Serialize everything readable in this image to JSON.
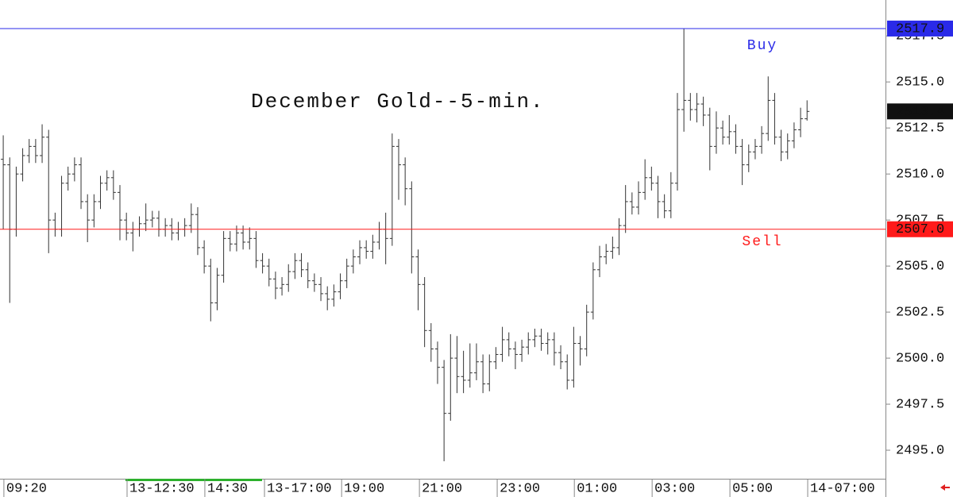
{
  "chart_data": {
    "type": "ohlc",
    "title": "December Gold--5-min.",
    "xlim": [
      -0.5,
      136.1
    ],
    "ylim": [
      2493.45,
      2519.45
    ],
    "yticks": [
      {
        "value": 2495,
        "label": "2495.0"
      },
      2497.5,
      {
        "value": 2500,
        "label": "2500.0"
      },
      2502.5,
      {
        "value": 2505,
        "label": "2505.0"
      },
      2507.5,
      {
        "value": 2510,
        "label": "2510.0"
      },
      2512.5,
      {
        "value": 2515,
        "label": "2515.0"
      },
      2517.5
    ],
    "xticks": [
      {
        "value": 0.1,
        "label": "09:20"
      },
      {
        "value": 19.1,
        "label": "13-12:30"
      },
      {
        "value": 31.1,
        "label": "14:30"
      },
      {
        "value": 40.3,
        "label": "13-17:00"
      },
      {
        "value": 52.2,
        "label": "19:00"
      },
      {
        "value": 64.2,
        "label": "21:00"
      },
      {
        "value": 76.2,
        "label": "23:00"
      },
      {
        "value": 88.1,
        "label": "01:00"
      },
      {
        "value": 100.1,
        "label": "03:00"
      },
      {
        "value": 112.1,
        "label": "05:00"
      },
      {
        "value": 124.1,
        "label": "14-07:00"
      }
    ],
    "color": "#333333",
    "buy": {
      "text": "Buy",
      "price": 2517.9,
      "color": "#2a2ae8"
    },
    "sell": {
      "text": "Sell",
      "price": {
        "value": 2507,
        "label": "2507.0"
      },
      "color": "#ff1a1a"
    },
    "last_price": 2513.4,
    "open": [
      2510.8,
      2510.5,
      2507,
      2510,
      2511,
      2511.5,
      2511,
      2512,
      2507.5,
      2507,
      2509.5,
      2510,
      2510.5,
      2508.5,
      2507.5,
      2508.5,
      2509.5,
      2509.8,
      2509,
      2507.5,
      2506.8,
      2507,
      2507.3,
      2507.5,
      2507.6,
      2507,
      2507.2,
      2506.8,
      2507,
      2507.2,
      2507.8,
      2506,
      2505,
      2503,
      2504.5,
      2506.5,
      2506.2,
      2506.8,
      2506.3,
      2506.5,
      2505.3,
      2505,
      2504.3,
      2503.8,
      2504,
      2504.7,
      2505.3,
      2504.8,
      2504.2,
      2504,
      2503.5,
      2503.2,
      2503.6,
      2504.2,
      2505,
      2505.5,
      2506,
      2505.8,
      2506.3,
      2507,
      2506.5,
      2511.5,
      2510.5,
      2509.2,
      2505.5,
      2504,
      2501.5,
      2500.5,
      2499.5,
      2497,
      2500,
      2499,
      2498.8,
      2499.2,
      2499.8,
      2498.6,
      2499.8,
      2500.2,
      2501,
      2500.5,
      2500.2,
      2500.6,
      2501,
      2501.2,
      2500.8,
      2501,
      2500.3,
      2499.8,
      2498.8,
      2500.8,
      2500.5,
      2502.5,
      2504.8,
      2505.5,
      2505.8,
      2506,
      2507.2,
      2508.5,
      2508.2,
      2509,
      2509.8,
      2509.5,
      2508.5,
      2508,
      2509.5,
      2513.5,
      2514,
      2513.5,
      2513.8,
      2513.2,
      2511.5,
      2512.5,
      2512,
      2512.3,
      2511.5,
      2510.5,
      2511.2,
      2511.5,
      2512.2,
      2514,
      2512,
      2511.2,
      2511.8,
      2512.4,
      2513
    ],
    "high": [
      2512.1,
      2510.9,
      2510.4,
      2511.4,
      2511.9,
      2511.9,
      2512.7,
      2512.4,
      2507.9,
      2509.9,
      2510.4,
      2510.9,
      2510.9,
      2508.9,
      2508.9,
      2509.9,
      2510.2,
      2510.2,
      2509.4,
      2507.9,
      2507.4,
      2507.7,
      2508.4,
      2508,
      2508,
      2507.6,
      2507.6,
      2507.4,
      2507.6,
      2508.4,
      2508.2,
      2506.4,
      2505.4,
      2504.9,
      2506.9,
      2506.9,
      2507.2,
      2507.2,
      2507.1,
      2506.9,
      2505.7,
      2505.4,
      2504.7,
      2504.4,
      2505.1,
      2505.7,
      2505.7,
      2505.2,
      2504.6,
      2504.4,
      2503.9,
      2504,
      2504.6,
      2505.4,
      2505.9,
      2506.4,
      2506.4,
      2506.7,
      2507.4,
      2507.9,
      2512.2,
      2511.9,
      2510.9,
      2509.6,
      2505.9,
      2504.4,
      2501.9,
      2500.9,
      2499.9,
      2501.3,
      2501.2,
      2500.4,
      2500.8,
      2500.8,
      2500.2,
      2500.2,
      2500.6,
      2501.7,
      2501.4,
      2500.9,
      2501,
      2501.4,
      2501.6,
      2501.6,
      2501.4,
      2501.4,
      2500.7,
      2500.2,
      2501.7,
      2501.2,
      2502.9,
      2505.2,
      2506.1,
      2506.2,
      2506.6,
      2507.6,
      2509.4,
      2509,
      2509.6,
      2510.8,
      2510.4,
      2509.9,
      2508.9,
      2510.1,
      2514.4,
      2517.9,
      2514.4,
      2514.4,
      2514.2,
      2513.6,
      2513.4,
      2512.9,
      2513.2,
      2512.7,
      2511.9,
      2511.6,
      2511.9,
      2512.6,
      2515.3,
      2514.4,
      2512.4,
      2512.2,
      2512.8,
      2513.6,
      2514
    ],
    "low": [
      2507,
      2503,
      2506.6,
      2509.6,
      2510.6,
      2510.6,
      2510.6,
      2505.7,
      2506.6,
      2506.6,
      2509.1,
      2509.6,
      2508.1,
      2506.3,
      2507.1,
      2508.1,
      2509.1,
      2508.6,
      2506.4,
      2506.4,
      2505.8,
      2506.6,
      2506.9,
      2507.1,
      2506.6,
      2506.6,
      2506.4,
      2506.4,
      2506.6,
      2506.8,
      2505.6,
      2504.6,
      2502,
      2502.6,
      2504.1,
      2505.8,
      2505.8,
      2505.9,
      2505.9,
      2504.9,
      2504.6,
      2503.9,
      2503.2,
      2503.4,
      2503.6,
      2504.3,
      2504.4,
      2503.8,
      2503.6,
      2503.1,
      2502.6,
      2502.8,
      2503.2,
      2503.8,
      2504.6,
      2505.1,
      2505.4,
      2505.4,
      2505.9,
      2505.1,
      2506.1,
      2508.6,
      2508.3,
      2504.6,
      2502.6,
      2500.6,
      2499.8,
      2498.6,
      2494.4,
      2496.6,
      2498.1,
      2498.1,
      2498.4,
      2498.8,
      2498.1,
      2498.2,
      2499.4,
      2499.8,
      2500.1,
      2499.4,
      2499.8,
      2500.2,
      2500.6,
      2500.4,
      2500.2,
      2499.6,
      2499.4,
      2498.3,
      2498.4,
      2499.6,
      2500.1,
      2502.1,
      2504.4,
      2505.1,
      2505.4,
      2505.6,
      2506.8,
      2507.8,
      2507.8,
      2508.6,
      2509.1,
      2507.6,
      2507.6,
      2507.6,
      2509.1,
      2512.3,
      2512.9,
      2512.8,
      2512.6,
      2510.2,
      2511.1,
      2511.6,
      2511.6,
      2511.1,
      2509.4,
      2510.1,
      2510.8,
      2511.1,
      2511.8,
      2511.6,
      2510.7,
      2510.8,
      2511.4,
      2512,
      2512.9
    ],
    "close": [
      2510.5,
      2507,
      2510,
      2511,
      2511.5,
      2511,
      2512,
      2507.5,
      2507,
      2509.5,
      2510,
      2510.5,
      2508.5,
      2507.5,
      2508.5,
      2509.5,
      2509.8,
      2509,
      2507.5,
      2506.8,
      2507,
      2507.3,
      2507.5,
      2507.6,
      2507,
      2507.2,
      2506.8,
      2507,
      2507.2,
      2507.8,
      2506,
      2505,
      2503,
      2504.5,
      2506.5,
      2506.2,
      2506.8,
      2506.3,
      2506.5,
      2505.3,
      2505,
      2504.3,
      2503.8,
      2504,
      2504.7,
      2505.3,
      2504.8,
      2504.2,
      2504,
      2503.5,
      2503.2,
      2503.6,
      2504.2,
      2505,
      2505.5,
      2506,
      2505.8,
      2506.3,
      2507,
      2506.5,
      2511.5,
      2510.5,
      2509.2,
      2505.5,
      2504,
      2501.5,
      2500.5,
      2499.5,
      2497,
      2500,
      2499,
      2498.8,
      2499.2,
      2499.8,
      2498.6,
      2499.8,
      2500.2,
      2501,
      2500.5,
      2500.2,
      2500.6,
      2501,
      2501.2,
      2500.8,
      2501,
      2500.3,
      2499.8,
      2498.8,
      2500.8,
      2500.5,
      2502.5,
      2504.8,
      2505.5,
      2505.8,
      2506,
      2507.2,
      2508.5,
      2508.2,
      2509,
      2509.8,
      2509.5,
      2508.5,
      2508,
      2509.5,
      2513.5,
      2514,
      2513.5,
      2513.8,
      2513.2,
      2511.5,
      2512.5,
      2512,
      2512.3,
      2511.5,
      2510.5,
      2511.2,
      2511.5,
      2512.2,
      2514,
      2512,
      2511.2,
      2511.8,
      2512.4,
      2513,
      2513.4
    ]
  }
}
